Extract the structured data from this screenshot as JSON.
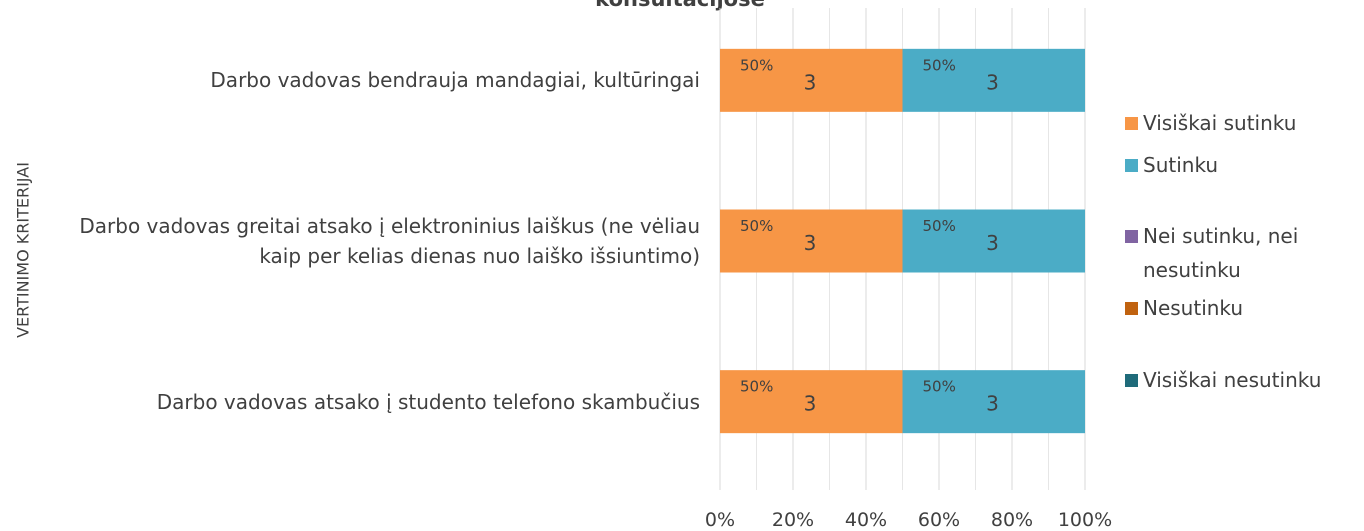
{
  "chart_data": {
    "type": "bar",
    "orientation": "horizontal",
    "stacked": true,
    "title": "konsultacijose",
    "ylabel": "VERTINIMO KRITERIJAI",
    "categories": [
      "Darbo vadovas bendrauja mandagiai, kultūringai",
      "Darbo vadovas greitai atsako į elektroninius laiškus (ne vėliau kaip per kelias dienas nuo laiško išsiuntimo)",
      "Darbo vadovas atsako į studento telefono skambučius"
    ],
    "series": [
      {
        "name": "Visiškai sutinku",
        "color": "#F79646",
        "values": [
          50,
          50,
          50
        ],
        "value_labels": [
          "50%",
          "50%",
          "50%"
        ],
        "counts": [
          3,
          3,
          3
        ]
      },
      {
        "name": "Sutinku",
        "color": "#4BACC6",
        "values": [
          50,
          50,
          50
        ],
        "value_labels": [
          "50%",
          "50%",
          "50%"
        ],
        "counts": [
          3,
          3,
          3
        ]
      },
      {
        "name": "Nei sutinku, nei nesutinku",
        "color": "#8064A2",
        "values": [
          0,
          0,
          0
        ]
      },
      {
        "name": "Nesutinku",
        "color": "#C0620F",
        "values": [
          0,
          0,
          0
        ]
      },
      {
        "name": "Visiškai nesutinku",
        "color": "#1F6B7A",
        "values": [
          0,
          0,
          0
        ]
      }
    ],
    "xlim": [
      0,
      100
    ],
    "xticks": [
      {
        "value": 0,
        "label": "0%"
      },
      {
        "value": 20,
        "label": "20%"
      },
      {
        "value": 40,
        "label": "40%"
      },
      {
        "value": 60,
        "label": "60%"
      },
      {
        "value": 80,
        "label": "80%"
      },
      {
        "value": 100,
        "label": "100%"
      }
    ],
    "minor_xticks": [
      10,
      30,
      50,
      70,
      90
    ],
    "grid": true,
    "legend": "right"
  }
}
